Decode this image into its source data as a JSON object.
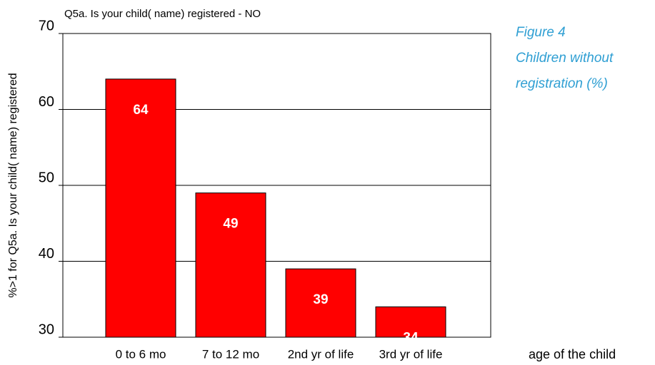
{
  "chart_data": {
    "type": "bar",
    "title": "Q5a. Is your child( name) registered - NO",
    "y_label": "%>1 for Q5a. Is your child( name) registered",
    "x_label": "age of the child",
    "annotations": [
      "Figure 4",
      "Children without",
      "registration (%)"
    ],
    "categories": [
      "0 to 6 mo",
      "7 to 12 mo",
      "2nd yr of life",
      "3rd yr of life"
    ],
    "values": [
      64,
      49,
      39,
      34
    ],
    "color": "#ff0000",
    "ylim": [
      30,
      70
    ],
    "yticks": [
      30,
      40,
      50,
      60,
      70
    ],
    "grid": true
  }
}
